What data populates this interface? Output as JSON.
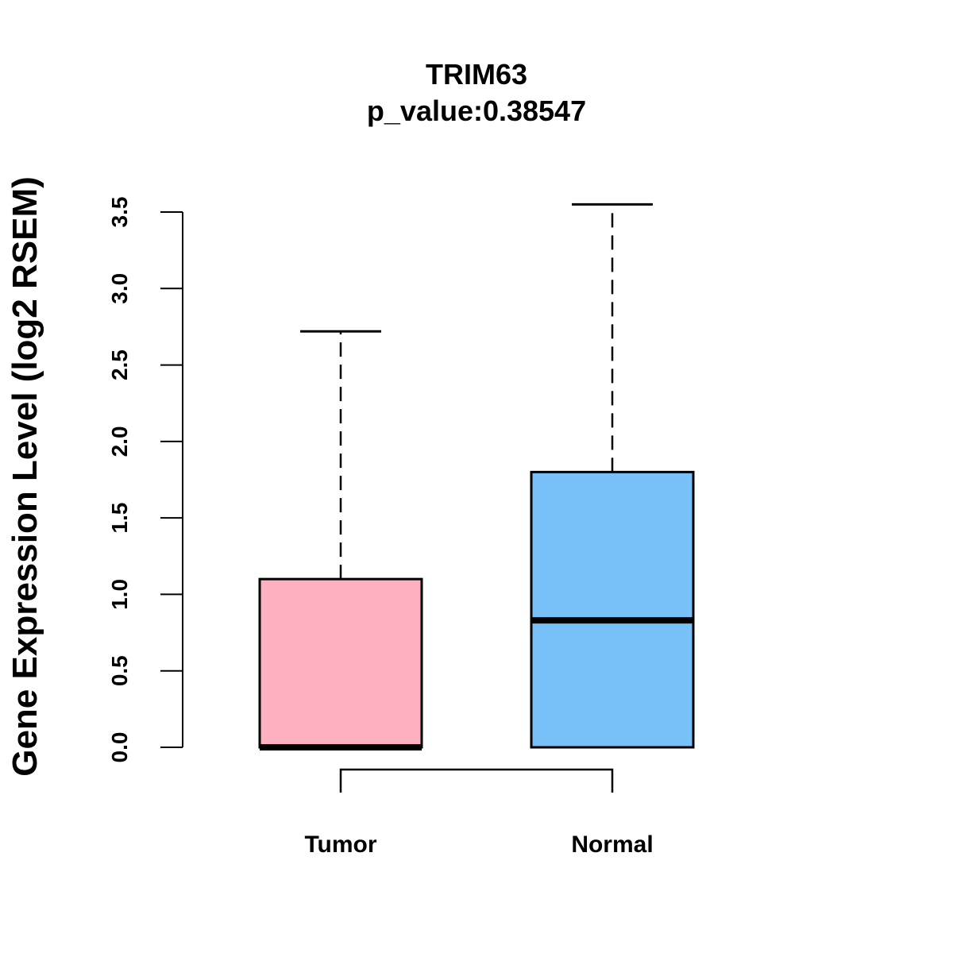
{
  "chart_data": {
    "type": "box",
    "title": "TRIM63",
    "subtitle": "p_value:0.38547",
    "xlabel": "",
    "ylabel": "Gene Expression Level (log2 RSEM)",
    "ylim": [
      0,
      3.5
    ],
    "yticks": [
      0.0,
      0.5,
      1.0,
      1.5,
      2.0,
      2.5,
      3.0,
      3.5
    ],
    "ytick_labels": [
      "0.0",
      "0.5",
      "1.0",
      "1.5",
      "2.0",
      "2.5",
      "3.0",
      "3.5"
    ],
    "categories": [
      "Tumor",
      "Normal"
    ],
    "boxes": [
      {
        "name": "Tumor",
        "min": 0.0,
        "q1": 0.0,
        "median": 0.0,
        "q3": 1.1,
        "max": 2.72,
        "color": "#FDB0C0"
      },
      {
        "name": "Normal",
        "min": 0.0,
        "q1": 0.0,
        "median": 0.83,
        "q3": 1.8,
        "max": 3.55,
        "color": "#78C1F8"
      }
    ],
    "comparison_bracket": [
      "Tumor",
      "Normal"
    ],
    "grid": false,
    "legend": "none"
  }
}
